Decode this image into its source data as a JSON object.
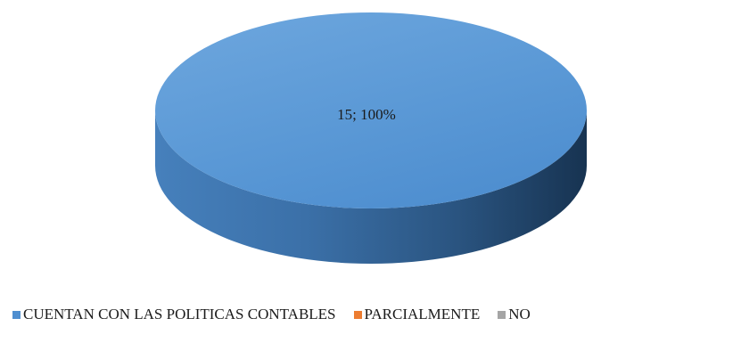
{
  "chart_data": {
    "type": "pie",
    "style": "3d",
    "title": "",
    "categories": [
      "CUENTAN CON LAS POLITICAS CONTABLES",
      "PARCIALMENTE",
      "NO"
    ],
    "values": [
      15,
      0,
      0
    ],
    "percents": [
      100,
      0,
      0
    ],
    "colors": [
      "#4f8fd0",
      "#ed7d31",
      "#a5a5a5"
    ],
    "data_labels": [
      "15; 100%"
    ],
    "legend_placement": "bottom"
  }
}
